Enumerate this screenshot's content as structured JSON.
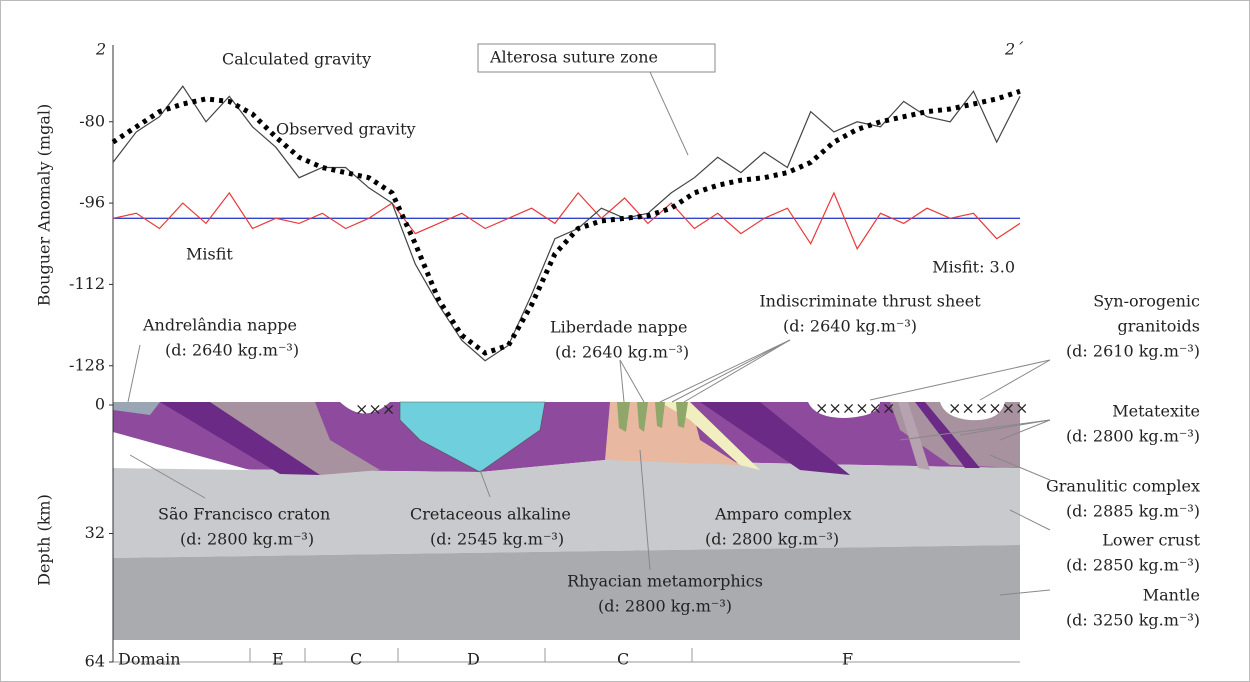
{
  "chart_data": [
    {
      "type": "line",
      "profile_start": "2",
      "profile_end": "2´",
      "ylabel": "Bouguer Anomaly (mgal)",
      "ylim": [
        -131,
        -65
      ],
      "yticks": [
        -80,
        -96,
        -112,
        -128
      ],
      "reference_line": -99,
      "reference_color": "#3344cc",
      "series": [
        {
          "name": "Calculated gravity",
          "color": "#000000",
          "style": "dotted",
          "values": [
            -84,
            -81,
            -78,
            -76.5,
            -75.5,
            -76,
            -78.5,
            -83,
            -87,
            -89,
            -90,
            -91,
            -94,
            -104,
            -115,
            -122,
            -125.5,
            -124,
            -116,
            -106,
            -101,
            -99.5,
            -99,
            -98.5,
            -97,
            -94,
            -92.5,
            -91.5,
            -91,
            -90,
            -88,
            -84,
            -81.5,
            -80,
            -79,
            -78,
            -77.5,
            -76.5,
            -75.5,
            -74
          ]
        },
        {
          "name": "Observed gravity",
          "color": "#444444",
          "style": "solid",
          "values": [
            -88,
            -82,
            -79,
            -73,
            -80,
            -75,
            -81,
            -85,
            -91,
            -89,
            -89,
            -93,
            -96,
            -108,
            -116,
            -123,
            -127,
            -124,
            -114,
            -103,
            -101,
            -97,
            -99,
            -98,
            -94,
            -91,
            -87,
            -90,
            -86,
            -89,
            -78,
            -82,
            -80,
            -81,
            -76,
            -79,
            -80,
            -74,
            -84,
            -75
          ]
        },
        {
          "name": "Misfit",
          "color": "#e8393a",
          "style": "solid",
          "values": [
            -99,
            -98,
            -101,
            -96,
            -100,
            -94,
            -101,
            -99,
            -100,
            -98,
            -101,
            -99,
            -96,
            -102,
            -100,
            -98,
            -101,
            -99,
            -97,
            -100,
            -94,
            -99,
            -95,
            -100,
            -96,
            -101,
            -98,
            -102,
            -99,
            -97,
            -104,
            -94,
            -105,
            -98,
            -100,
            -97,
            -99,
            -98,
            -103,
            -100
          ]
        }
      ],
      "annotation": "Alterosa suture zone",
      "misfit_note": "Misfit: 3.0"
    },
    {
      "type": "section",
      "ylabel": "Depth (km)",
      "ylim": [
        0,
        64
      ],
      "yticks": [
        0,
        32,
        64
      ],
      "units": [
        {
          "lines": [
            "Andrelândia nappe",
            "(d: 2640 kg.m⁻³)"
          ]
        },
        {
          "lines": [
            "Liberdade nappe",
            "(d: 2640 kg.m⁻³)"
          ]
        },
        {
          "lines": [
            "Indiscriminate thrust sheet",
            "(d: 2640 kg.m⁻³)"
          ]
        },
        {
          "lines": [
            "Syn-orogenic",
            "granitoids",
            "(d: 2610 kg.m⁻³)"
          ]
        },
        {
          "lines": [
            "Metatexite",
            "(d: 2800 kg.m⁻³)"
          ]
        },
        {
          "lines": [
            "Granulitic complex",
            "(d: 2885 kg.m⁻³)"
          ]
        },
        {
          "lines": [
            "Lower crust",
            "(d: 2850 kg.m⁻³)"
          ]
        },
        {
          "lines": [
            "Mantle",
            "(d: 3250 kg.m⁻³)"
          ]
        },
        {
          "lines": [
            "São Francisco craton",
            "(d: 2800 kg.m⁻³)"
          ]
        },
        {
          "lines": [
            "Cretaceous alkaline",
            "(d: 2545 kg.m⁻³)"
          ]
        },
        {
          "lines": [
            "Amparo complex",
            "(d: 2800 kg.m⁻³)"
          ]
        },
        {
          "lines": [
            "Rhyacian metamorphics",
            "(d: 2800 kg.m⁻³)"
          ]
        }
      ],
      "domains": {
        "title": "Domain",
        "labels": [
          "E",
          "C",
          "D",
          "C",
          "F"
        ]
      }
    }
  ]
}
